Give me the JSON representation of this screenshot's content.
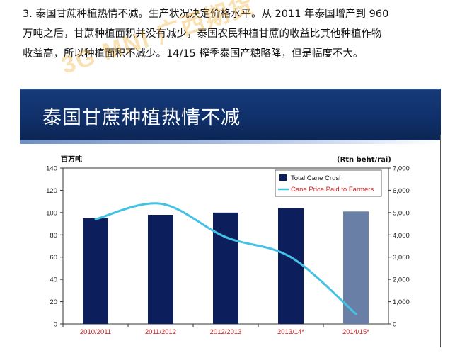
{
  "intro": {
    "line1": "3. 泰国甘蔗种植热情不减。生产状况决定价格水平。从 2011 年泰国增产到 960",
    "line2": "万吨之后，甘蔗种植面积并没有减少，泰国农民种植甘蔗的收益比其他种植作物",
    "line3": "收益高，所以种植面积不减少。14/15 榨季泰国产糖略降，但是幅度不大。"
  },
  "watermark": "3G MNI 广西期货",
  "slide": {
    "title": "泰国甘蔗种植热情不减"
  },
  "chart_data": {
    "type": "bar",
    "categories": [
      "2010/2011",
      "2011/2012",
      "2012/2013",
      "2013/14*",
      "2014/15*"
    ],
    "left_axis_title": "百万吨",
    "right_axis_title": "(Rtn beht/rai)",
    "left_ylim": [
      0,
      140
    ],
    "left_ticks": [
      0,
      20,
      40,
      60,
      80,
      100,
      120,
      140
    ],
    "right_ylim": [
      0,
      7000
    ],
    "right_ticks": [
      "0",
      "1,000",
      "2,000",
      "3,000",
      "4,000",
      "5,000",
      "6,000",
      "7,000"
    ],
    "grid": false,
    "legend_position": "top-right",
    "series": [
      {
        "name": "Total Cane Crush",
        "kind": "bar",
        "axis": "left",
        "values": [
          95,
          98,
          100,
          104,
          101
        ],
        "color": "#0c1f5c",
        "last_bar_color": "#6a7fa6"
      },
      {
        "name": "Cane Price Paid to Farmers",
        "kind": "line",
        "axis": "right",
        "values": [
          4700,
          5400,
          3900,
          3000,
          450
        ],
        "color": "#44c2e6"
      }
    ]
  }
}
